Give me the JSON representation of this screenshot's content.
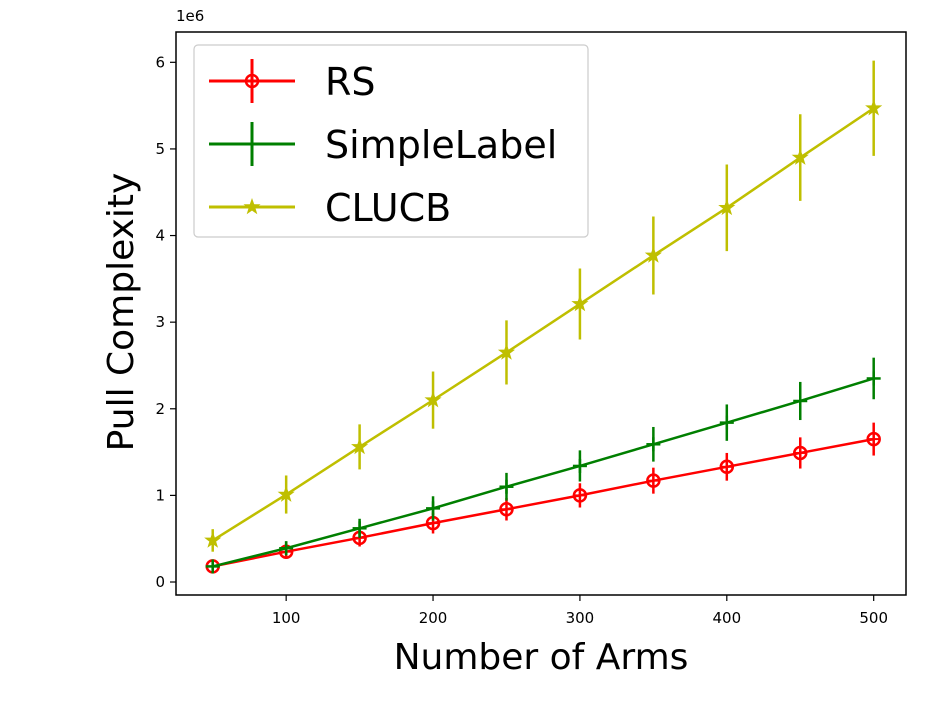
{
  "chart_data": {
    "type": "line",
    "xlabel": "Number of Arms",
    "ylabel": "Pull Complexity",
    "y_offset_label": "1e6",
    "x": [
      50,
      100,
      150,
      200,
      250,
      300,
      350,
      400,
      450,
      500
    ],
    "xlim": [
      25,
      522
    ],
    "ylim": [
      -0.15,
      6.35
    ],
    "x_ticks": [
      100,
      200,
      300,
      400,
      500
    ],
    "y_ticks": [
      0,
      1,
      2,
      3,
      4,
      5,
      6
    ],
    "grid": false,
    "legend_position": "top-left",
    "series": [
      {
        "name": "RS",
        "color": "#ff0000",
        "marker": "circle-plus",
        "values": [
          0.18,
          0.35,
          0.51,
          0.68,
          0.84,
          1.0,
          1.17,
          1.33,
          1.49,
          1.65
        ],
        "errors": [
          0.07,
          0.08,
          0.1,
          0.12,
          0.13,
          0.14,
          0.15,
          0.16,
          0.18,
          0.19
        ]
      },
      {
        "name": "SimpleLabel",
        "color": "#007f00",
        "marker": "plus",
        "values": [
          0.18,
          0.39,
          0.62,
          0.85,
          1.1,
          1.34,
          1.59,
          1.84,
          2.09,
          2.35
        ],
        "errors": [
          0.07,
          0.08,
          0.11,
          0.14,
          0.16,
          0.18,
          0.2,
          0.21,
          0.22,
          0.24
        ]
      },
      {
        "name": "CLUCB",
        "color": "#bfbf00",
        "marker": "star",
        "values": [
          0.48,
          1.01,
          1.56,
          2.1,
          2.65,
          3.21,
          3.77,
          4.32,
          4.9,
          5.47
        ],
        "errors": [
          0.13,
          0.22,
          0.26,
          0.33,
          0.37,
          0.41,
          0.45,
          0.5,
          0.5,
          0.55
        ]
      }
    ]
  }
}
